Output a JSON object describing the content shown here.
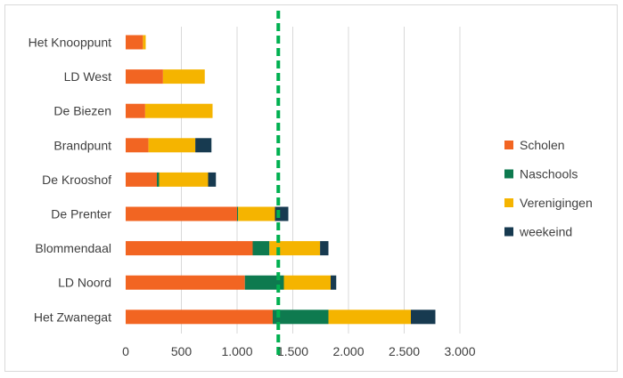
{
  "chart_data": {
    "type": "bar",
    "orientation": "horizontal",
    "stacked": true,
    "title": "",
    "xlabel": "",
    "ylabel": "",
    "xlim": [
      0,
      3000
    ],
    "tick_values": [
      0,
      500,
      1000,
      1500,
      2000,
      2500,
      3000
    ],
    "tick_labels": [
      "0",
      "500",
      "1.000",
      "1.500",
      "2.000",
      "2.500",
      "3.000"
    ],
    "grid": true,
    "legend_position": "right",
    "categories": [
      "Het Knooppunt",
      "LD West",
      "De Biezen",
      "Brandpunt",
      "De Krooshof",
      "De Prenter",
      "Blommendaal",
      "LD Noord",
      "Het Zwanegat"
    ],
    "series": [
      {
        "name": "Scholen",
        "color": "#f26522",
        "values": [
          155,
          335,
          175,
          205,
          280,
          1000,
          1140,
          1070,
          1320
        ]
      },
      {
        "name": "Naschools",
        "color": "#0e7a4f",
        "values": [
          0,
          0,
          0,
          0,
          20,
          10,
          150,
          350,
          500
        ]
      },
      {
        "name": "Verenigingen",
        "color": "#f5b400",
        "values": [
          25,
          375,
          605,
          420,
          440,
          330,
          455,
          420,
          740
        ]
      },
      {
        "name": "weekeind",
        "color": "#173a50",
        "values": [
          0,
          0,
          0,
          145,
          70,
          120,
          75,
          50,
          220
        ]
      }
    ],
    "reference_line": {
      "value": 1370,
      "color": "#00b050",
      "style": "dashed"
    }
  }
}
